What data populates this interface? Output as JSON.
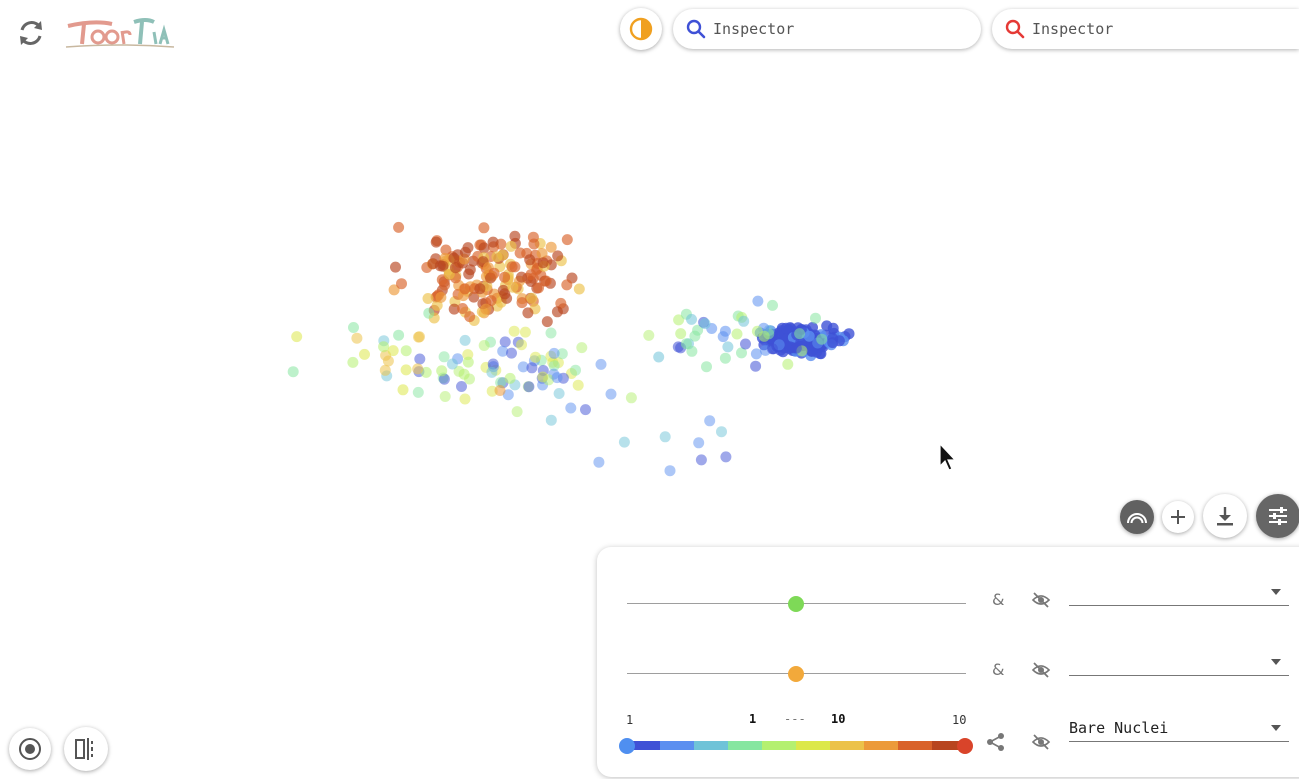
{
  "search": [
    {
      "placeholder": "Inspector",
      "icon_color": "#3f51d6"
    },
    {
      "placeholder": "Inspector",
      "icon_color": "#e53935"
    }
  ],
  "filters": [
    {
      "connector": "&",
      "thumb_color": "#7ed957",
      "value": 0.5,
      "field": ""
    },
    {
      "connector": "&",
      "thumb_color": "#f2a93b",
      "value": 0.5,
      "field": ""
    }
  ],
  "color_scale": {
    "min_label": "1",
    "max_label": "10",
    "range_low": "1",
    "range_sep": "---",
    "range_high": "10",
    "field": "Bare Nuclei",
    "colors": [
      "#3f51d6",
      "#5b8ff0",
      "#6fc3d8",
      "#86e6a0",
      "#b4f070",
      "#dce84a",
      "#ecc24a",
      "#ec9a3a",
      "#d9622a",
      "#b8451f"
    ],
    "thumb_left_color": "#4f8ff0",
    "thumb_right_color": "#d9442a"
  },
  "colors": {
    "theme_toggle": "#f0a020",
    "settings_button_bg": "#666666"
  }
}
